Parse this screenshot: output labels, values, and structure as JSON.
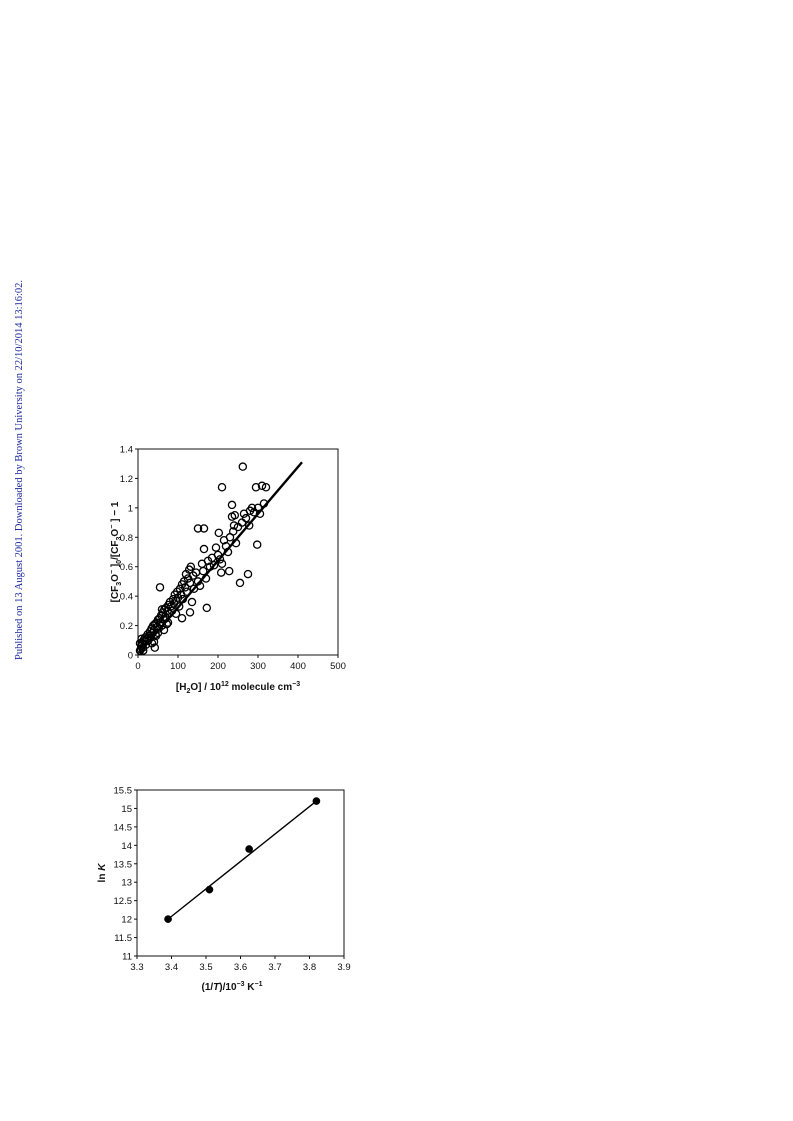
{
  "side_note": "Published on 13 August 2001. Downloaded by Brown University on 22/10/2014 13:16:02.",
  "chart_data": [
    {
      "type": "scatter",
      "xlabel": "[H2O] / 10^12 molecule cm^-3",
      "ylabel": "[CF3O−]0/[CF3O−] − 1",
      "xlim": [
        0,
        500
      ],
      "ylim": [
        0,
        1.4
      ],
      "x_ticks": [
        "0",
        "100",
        "200",
        "300",
        "400",
        "500"
      ],
      "y_ticks": [
        "0",
        "0.2",
        "0.4",
        "0.6",
        "0.8",
        "1",
        "1.2",
        "1.4"
      ],
      "grid": false,
      "marker": "open-circle",
      "points": [
        [
          5,
          0.03
        ],
        [
          8,
          0.06
        ],
        [
          10,
          0.08
        ],
        [
          12,
          0.05
        ],
        [
          14,
          0.1
        ],
        [
          16,
          0.09
        ],
        [
          18,
          0.12
        ],
        [
          20,
          0.07
        ],
        [
          22,
          0.11
        ],
        [
          24,
          0.14
        ],
        [
          26,
          0.1
        ],
        [
          28,
          0.13
        ],
        [
          30,
          0.16
        ],
        [
          32,
          0.12
        ],
        [
          34,
          0.18
        ],
        [
          36,
          0.15
        ],
        [
          38,
          0.2
        ],
        [
          40,
          0.17
        ],
        [
          42,
          0.21
        ],
        [
          44,
          0.14
        ],
        [
          46,
          0.22
        ],
        [
          48,
          0.19
        ],
        [
          50,
          0.24
        ],
        [
          52,
          0.18
        ],
        [
          54,
          0.25
        ],
        [
          56,
          0.22
        ],
        [
          58,
          0.27
        ],
        [
          60,
          0.2
        ],
        [
          62,
          0.29
        ],
        [
          64,
          0.24
        ],
        [
          66,
          0.31
        ],
        [
          68,
          0.26
        ],
        [
          70,
          0.32
        ],
        [
          72,
          0.21
        ],
        [
          74,
          0.3
        ],
        [
          76,
          0.34
        ],
        [
          78,
          0.28
        ],
        [
          80,
          0.36
        ],
        [
          82,
          0.33
        ],
        [
          85,
          0.3
        ],
        [
          88,
          0.38
        ],
        [
          90,
          0.35
        ],
        [
          92,
          0.41
        ],
        [
          95,
          0.37
        ],
        [
          98,
          0.43
        ],
        [
          100,
          0.39
        ],
        [
          103,
          0.33
        ],
        [
          105,
          0.45
        ],
        [
          108,
          0.41
        ],
        [
          110,
          0.48
        ],
        [
          112,
          0.38
        ],
        [
          115,
          0.5
        ],
        [
          118,
          0.46
        ],
        [
          120,
          0.55
        ],
        [
          122,
          0.43
        ],
        [
          125,
          0.52
        ],
        [
          128,
          0.58
        ],
        [
          130,
          0.49
        ],
        [
          132,
          0.6
        ],
        [
          135,
          0.36
        ],
        [
          138,
          0.54
        ],
        [
          140,
          0.45
        ],
        [
          145,
          0.56
        ],
        [
          150,
          0.5
        ],
        [
          155,
          0.47
        ],
        [
          160,
          0.62
        ],
        [
          163,
          0.57
        ],
        [
          165,
          0.72
        ],
        [
          170,
          0.52
        ],
        [
          172,
          0.32
        ],
        [
          175,
          0.64
        ],
        [
          180,
          0.6
        ],
        [
          185,
          0.66
        ],
        [
          190,
          0.61
        ],
        [
          195,
          0.73
        ],
        [
          200,
          0.68
        ],
        [
          202,
          0.83
        ],
        [
          205,
          0.65
        ],
        [
          208,
          0.56
        ],
        [
          210,
          0.62
        ],
        [
          215,
          0.78
        ],
        [
          220,
          0.74
        ],
        [
          225,
          0.7
        ],
        [
          230,
          0.8
        ],
        [
          235,
          1.02
        ],
        [
          238,
          0.84
        ],
        [
          240,
          0.88
        ],
        [
          242,
          0.95
        ],
        [
          245,
          0.76
        ],
        [
          250,
          0.87
        ],
        [
          255,
          0.49
        ],
        [
          260,
          0.9
        ],
        [
          262,
          1.28
        ],
        [
          265,
          0.96
        ],
        [
          270,
          0.93
        ],
        [
          275,
          0.55
        ],
        [
          278,
          0.88
        ],
        [
          280,
          0.98
        ],
        [
          285,
          1.0
        ],
        [
          290,
          0.97
        ],
        [
          295,
          1.14
        ],
        [
          298,
          0.75
        ],
        [
          300,
          1.0
        ],
        [
          305,
          0.96
        ],
        [
          310,
          1.15
        ],
        [
          315,
          1.03
        ],
        [
          320,
          1.14
        ],
        [
          55,
          0.46
        ],
        [
          60,
          0.31
        ],
        [
          70,
          0.25
        ],
        [
          150,
          0.86
        ],
        [
          165,
          0.86
        ],
        [
          210,
          1.14
        ],
        [
          235,
          0.94
        ],
        [
          228,
          0.57
        ],
        [
          5,
          0.08
        ],
        [
          7,
          0.04
        ],
        [
          9,
          0.11
        ],
        [
          11,
          0.07
        ],
        [
          13,
          0.03
        ],
        [
          40,
          0.09
        ],
        [
          45,
          0.13
        ],
        [
          50,
          0.15
        ],
        [
          65,
          0.17
        ],
        [
          75,
          0.22
        ],
        [
          95,
          0.28
        ],
        [
          110,
          0.25
        ],
        [
          130,
          0.29
        ],
        [
          35,
          0.08
        ],
        [
          42,
          0.05
        ]
      ],
      "fit_line": {
        "x": [
          5,
          410
        ],
        "y": [
          0.02,
          1.31
        ]
      }
    },
    {
      "type": "line",
      "xlabel": "(1/T)/10^-3 K^-1",
      "ylabel": "ln K",
      "xlim": [
        3.3,
        3.9
      ],
      "ylim": [
        11,
        15.5
      ],
      "x_ticks": [
        "3.3",
        "3.4",
        "3.5",
        "3.6",
        "3.7",
        "3.8",
        "3.9"
      ],
      "y_ticks": [
        "11",
        "11.5",
        "12",
        "12.5",
        "13",
        "13.5",
        "14",
        "14.5",
        "15",
        "15.5"
      ],
      "grid": false,
      "marker": "filled-circle",
      "points": [
        [
          3.39,
          12.0
        ],
        [
          3.51,
          12.8
        ],
        [
          3.625,
          13.9
        ],
        [
          3.82,
          15.2
        ]
      ],
      "fit_line": {
        "x": [
          3.39,
          3.82
        ],
        "y": [
          12.0,
          15.2
        ]
      }
    }
  ]
}
